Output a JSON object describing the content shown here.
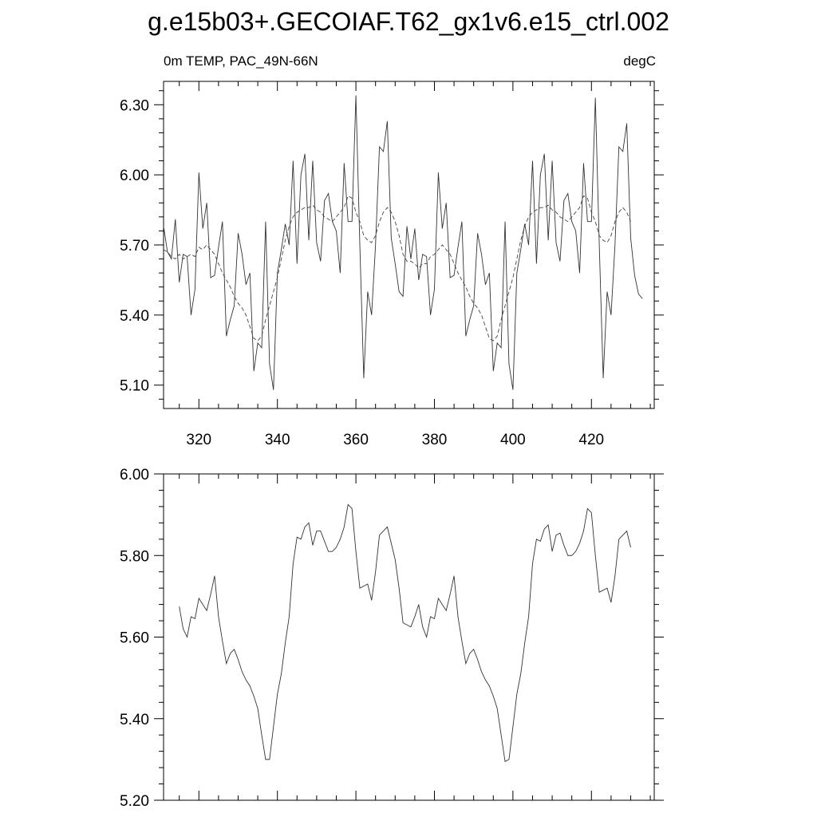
{
  "chart_data": {
    "title": "g.e15b03+.GECOIAF.T62_gx1v6.e15_ctrl.002",
    "panels": [
      {
        "type": "line",
        "left_label": "0m TEMP, PAC_49N-66N",
        "right_label": "degC",
        "xlim": [
          311,
          436
        ],
        "ylim": [
          5.0,
          6.4
        ],
        "x_ticks": [
          320,
          340,
          360,
          380,
          400,
          420
        ],
        "x_tick_labels": [
          "320",
          "340",
          "360",
          "380",
          "400",
          "420"
        ],
        "y_ticks": [
          5.1,
          5.4,
          5.7,
          6.0,
          6.3
        ],
        "y_tick_labels": [
          "5.10",
          "5.40",
          "5.70",
          "6.00",
          "6.30"
        ],
        "x_start": 311,
        "x_step": 1,
        "series": [
          {
            "style": "solid",
            "values": [
              5.78,
              5.67,
              5.64,
              5.81,
              5.54,
              5.66,
              5.65,
              5.4,
              5.51,
              6.01,
              5.77,
              5.88,
              5.56,
              5.57,
              5.69,
              5.8,
              5.31,
              5.38,
              5.44,
              5.75,
              5.66,
              5.53,
              5.58,
              5.16,
              5.28,
              5.26,
              5.8,
              5.19,
              5.08,
              5.58,
              5.68,
              5.79,
              5.7,
              6.06,
              5.62,
              6.0,
              6.09,
              5.72,
              6.06,
              5.71,
              5.63,
              5.89,
              5.92,
              5.8,
              5.76,
              5.58,
              6.05,
              5.8,
              5.8,
              6.34,
              5.7,
              5.13,
              5.5,
              5.4,
              5.7,
              6.12,
              6.1,
              6.23,
              5.73,
              5.62,
              5.5,
              5.48,
              5.78,
              5.64,
              5.77,
              5.55,
              5.66,
              5.65,
              5.4,
              5.51,
              6.01,
              5.77,
              5.88,
              5.56,
              5.57,
              5.69,
              5.8,
              5.31,
              5.38,
              5.44,
              5.75,
              5.66,
              5.53,
              5.58,
              5.16,
              5.28,
              5.26,
              5.8,
              5.19,
              5.08,
              5.58,
              5.68,
              5.79,
              5.7,
              6.06,
              5.62,
              6.0,
              6.09,
              5.72,
              6.06,
              5.71,
              5.63,
              5.89,
              5.92,
              5.8,
              5.76,
              5.58,
              6.05,
              5.8,
              5.8,
              6.33,
              5.7,
              5.13,
              5.5,
              5.4,
              5.7,
              6.12,
              6.1,
              6.22,
              5.73,
              5.57,
              5.49,
              5.47
            ]
          },
          {
            "style": "dashed",
            "values": [
              5.68,
              5.67,
              5.65,
              5.64,
              5.66,
              5.64,
              5.65,
              5.66,
              5.65,
              5.69,
              5.68,
              5.7,
              5.68,
              5.66,
              5.62,
              5.58,
              5.55,
              5.52,
              5.48,
              5.45,
              5.43,
              5.4,
              5.35,
              5.3,
              5.29,
              5.31,
              5.38,
              5.44,
              5.5,
              5.56,
              5.64,
              5.72,
              5.78,
              5.82,
              5.84,
              5.85,
              5.86,
              5.86,
              5.87,
              5.85,
              5.84,
              5.82,
              5.81,
              5.8,
              5.82,
              5.84,
              5.86,
              5.91,
              5.9,
              5.84,
              5.8,
              5.74,
              5.72,
              5.71,
              5.74,
              5.8,
              5.84,
              5.86,
              5.84,
              5.8,
              5.74,
              5.66,
              5.63,
              5.63,
              5.62,
              5.6,
              5.62,
              5.62,
              5.65,
              5.66,
              5.68,
              5.7,
              5.68,
              5.66,
              5.62,
              5.58,
              5.55,
              5.52,
              5.48,
              5.45,
              5.43,
              5.4,
              5.35,
              5.3,
              5.29,
              5.31,
              5.38,
              5.44,
              5.5,
              5.56,
              5.64,
              5.72,
              5.78,
              5.82,
              5.84,
              5.85,
              5.86,
              5.86,
              5.87,
              5.85,
              5.84,
              5.82,
              5.81,
              5.8,
              5.82,
              5.84,
              5.86,
              5.91,
              5.9,
              5.84,
              5.8,
              5.74,
              5.72,
              5.71,
              5.74,
              5.8,
              5.84,
              5.86,
              5.84,
              5.8
            ]
          }
        ]
      },
      {
        "type": "line",
        "xlim": [
          311,
          436
        ],
        "ylim": [
          5.2,
          6.0
        ],
        "x_ticks": [
          320,
          340,
          360,
          380,
          400,
          420
        ],
        "y_ticks": [
          5.2,
          5.4,
          5.6,
          5.8,
          6.0
        ],
        "y_tick_labels": [
          "5.20",
          "5.40",
          "5.60",
          "5.80",
          "6.00"
        ],
        "x_start": 315,
        "x_step": 1,
        "series": [
          {
            "style": "solid",
            "values": [
              5.675,
              5.62,
              5.6,
              5.65,
              5.645,
              5.695,
              5.68,
              5.665,
              5.705,
              5.75,
              5.65,
              5.59,
              5.535,
              5.56,
              5.57,
              5.545,
              5.515,
              5.495,
              5.48,
              5.455,
              5.425,
              5.36,
              5.3,
              5.3,
              5.38,
              5.46,
              5.51,
              5.585,
              5.65,
              5.78,
              5.845,
              5.84,
              5.87,
              5.88,
              5.825,
              5.86,
              5.86,
              5.835,
              5.81,
              5.81,
              5.82,
              5.84,
              5.87,
              5.925,
              5.915,
              5.81,
              5.72,
              5.725,
              5.73,
              5.69,
              5.76,
              5.85,
              5.86,
              5.87,
              5.83,
              5.79,
              5.72,
              5.635,
              5.63,
              5.625,
              5.65,
              5.68,
              5.625,
              5.6,
              5.65,
              5.645,
              5.695,
              5.68,
              5.665,
              5.705,
              5.75,
              5.65,
              5.59,
              5.535,
              5.56,
              5.57,
              5.545,
              5.515,
              5.495,
              5.48,
              5.455,
              5.425,
              5.36,
              5.295,
              5.3,
              5.38,
              5.46,
              5.51,
              5.585,
              5.65,
              5.78,
              5.84,
              5.835,
              5.865,
              5.875,
              5.81,
              5.85,
              5.855,
              5.825,
              5.8,
              5.8,
              5.81,
              5.83,
              5.86,
              5.915,
              5.905,
              5.8,
              5.71,
              5.715,
              5.72,
              5.685,
              5.75,
              5.84,
              5.85,
              5.86,
              5.82
            ]
          }
        ]
      }
    ]
  }
}
